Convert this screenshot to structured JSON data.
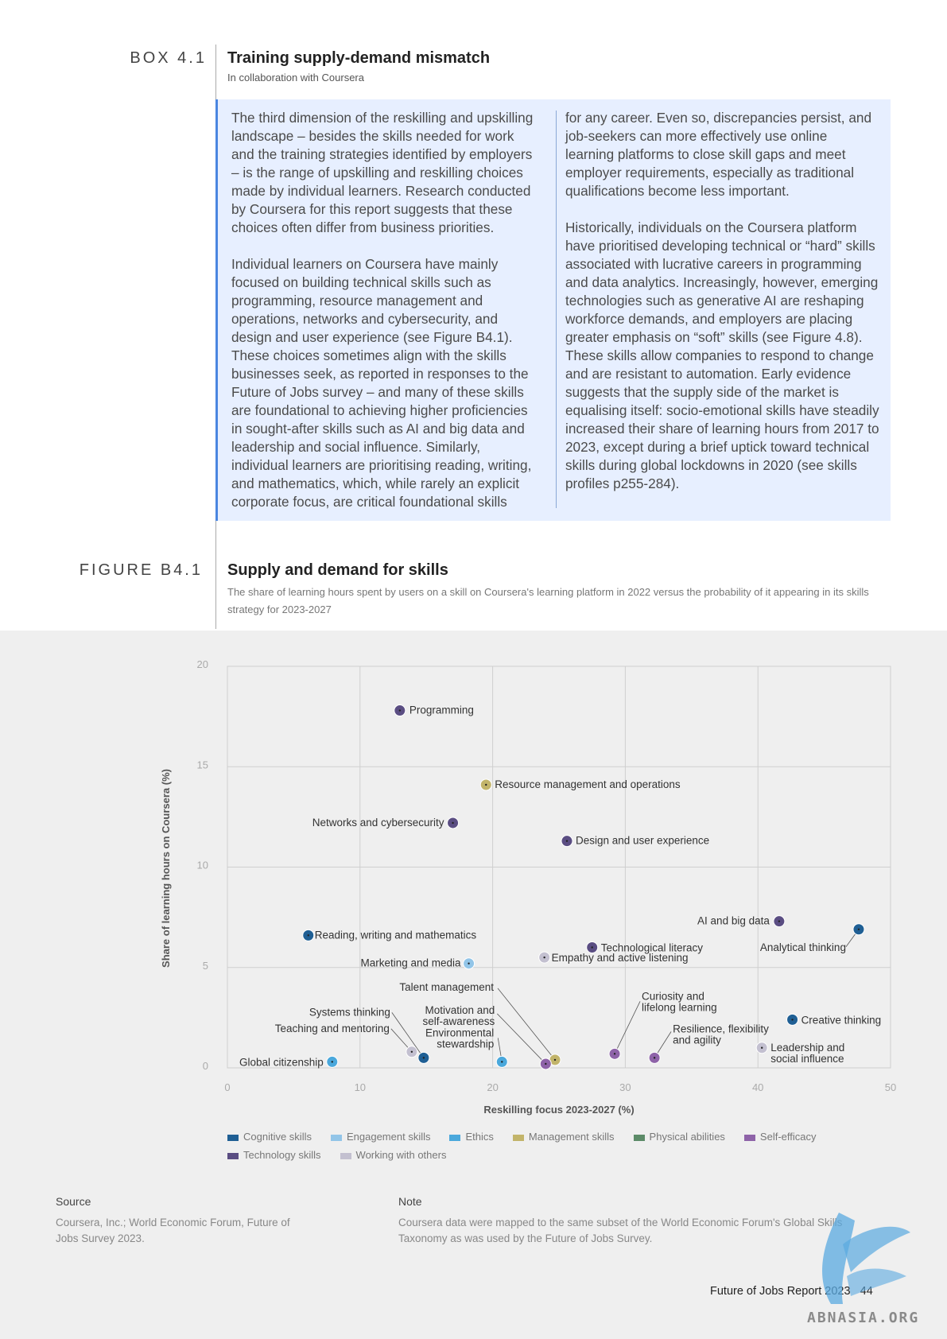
{
  "box": {
    "label": "BOX 4.1",
    "title": "Training supply-demand mismatch",
    "subtitle": "In collaboration with Coursera",
    "col1_p1": "The third dimension of the reskilling and upskilling landscape – besides the skills needed for work and the training strategies identified by employers – is the range of upskilling and reskilling choices made by individual learners. Research conducted by Coursera for this report suggests that these choices often differ from business priorities.",
    "col1_p2": "Individual learners on Coursera have mainly focused on building technical skills such as programming, resource management and operations, networks and cybersecurity, and design and user experience (see Figure B4.1). These choices sometimes align with the skills businesses seek, as reported in responses to the Future of Jobs survey – and many of these skills are foundational to achieving higher proficiencies in sought-after skills such as AI and big data and leadership and social influence. Similarly, individual learners are prioritising reading, writing, and mathematics, which, while rarely an explicit corporate focus, are critical foundational skills",
    "col2_p1": "for any career. Even so, discrepancies persist, and job-seekers can more effectively use online learning platforms to close skill gaps and meet employer requirements, especially as traditional qualifications become less important.",
    "col2_p2": "Historically, individuals on the Coursera platform have prioritised developing technical or “hard” skills associated with lucrative careers in programming and data analytics. Increasingly, however, emerging technologies such as generative AI are reshaping workforce demands, and employers are placing greater emphasis on “soft” skills (see Figure 4.8). These skills allow companies to respond to change and are resistant to automation. Early evidence suggests that the supply side of the market is equalising itself: socio-emotional skills have steadily increased their share of learning hours from 2017 to 2023, except during a brief uptick toward technical skills during global lockdowns in 2020 (see skills profiles p255-284)."
  },
  "figure": {
    "label": "FIGURE B4.1",
    "title": "Supply and demand for skills",
    "subtitle": "The share of learning hours spent by users on a skill on Coursera's learning platform in 2022 versus the probability of it appearing in its skills strategy for 2023-2027"
  },
  "colors": {
    "Cognitive skills": "#1f5f94",
    "Engagement skills": "#92c5e8",
    "Ethics": "#4aa8dc",
    "Management skills": "#c2b46a",
    "Physical abilities": "#5c8b68",
    "Self-efficacy": "#8e63a8",
    "Technology skills": "#5a4d82",
    "Working with others": "#c3c0d0"
  },
  "chart_data": {
    "type": "scatter",
    "xlabel": "Reskilling focus 2023-2027 (%)",
    "ylabel": "Share of learning hours on Coursera (%)",
    "xlim": [
      0,
      50
    ],
    "ylim": [
      0,
      20
    ],
    "xticks": [
      "0",
      "10",
      "20",
      "30",
      "40",
      "50"
    ],
    "yticks": [
      "0",
      "5",
      "10",
      "15",
      "20"
    ],
    "grid": true,
    "legend_position": "bottom",
    "legend": [
      "Cognitive skills",
      "Engagement skills",
      "Ethics",
      "Management skills",
      "Physical abilities",
      "Self-efficacy",
      "Technology skills",
      "Working with others"
    ],
    "points": [
      {
        "label": "Programming",
        "x": 13,
        "y": 17.8,
        "category": "Technology skills"
      },
      {
        "label": "Resource management and operations",
        "x": 19.5,
        "y": 14.1,
        "category": "Management skills"
      },
      {
        "label": "Networks and cybersecurity",
        "x": 17,
        "y": 12.2,
        "category": "Technology skills"
      },
      {
        "label": "Design and user experience",
        "x": 25.6,
        "y": 11.3,
        "category": "Technology skills"
      },
      {
        "label": "AI and big data",
        "x": 41.6,
        "y": 7.3,
        "category": "Technology skills"
      },
      {
        "label": "Analytical thinking",
        "x": 47.6,
        "y": 6.9,
        "category": "Cognitive skills"
      },
      {
        "label": "Reading, writing and mathematics",
        "x": 6.1,
        "y": 6.6,
        "category": "Cognitive skills"
      },
      {
        "label": "Technological literacy",
        "x": 27.5,
        "y": 6.0,
        "category": "Technology skills"
      },
      {
        "label": "Empathy and active listening",
        "x": 23.9,
        "y": 5.5,
        "category": "Working with others"
      },
      {
        "label": "Marketing and media",
        "x": 18.2,
        "y": 5.2,
        "category": "Engagement skills"
      },
      {
        "label": "Talent management",
        "x": 24.7,
        "y": 0.4,
        "category": "Management skills"
      },
      {
        "label": "Motivation and self-awareness",
        "x": 24.0,
        "y": 0.2,
        "category": "Self-efficacy"
      },
      {
        "label": "Environmental stewardship",
        "x": 20.7,
        "y": 0.3,
        "category": "Ethics"
      },
      {
        "label": "Systems thinking",
        "x": 14.8,
        "y": 0.5,
        "category": "Cognitive skills"
      },
      {
        "label": "Teaching and mentoring",
        "x": 13.9,
        "y": 0.8,
        "category": "Working with others"
      },
      {
        "label": "Global citizenship",
        "x": 7.9,
        "y": 0.3,
        "category": "Ethics"
      },
      {
        "label": "Curiosity and lifelong learning",
        "x": 29.2,
        "y": 0.7,
        "category": "Self-efficacy"
      },
      {
        "label": "Resilience, flexibility and agility",
        "x": 32.2,
        "y": 0.5,
        "category": "Self-efficacy"
      },
      {
        "label": "Creative thinking",
        "x": 42.6,
        "y": 2.4,
        "category": "Cognitive skills"
      },
      {
        "label": "Leadership and social influence",
        "x": 40.3,
        "y": 1.0,
        "category": "Working with others"
      }
    ]
  },
  "source": {
    "heading": "Source",
    "text": "Coursera, Inc.; World Economic Forum, Future of Jobs Survey 2023."
  },
  "note": {
    "heading": "Note",
    "text": "Coursera data were mapped to the same subset of the World Economic Forum's Global Skills Taxonomy as was used by the Future of Jobs Survey."
  },
  "footer": {
    "text": "Future of Jobs Report 2023",
    "page": "44"
  },
  "watermark": {
    "text": "ABNASIA.ORG"
  }
}
